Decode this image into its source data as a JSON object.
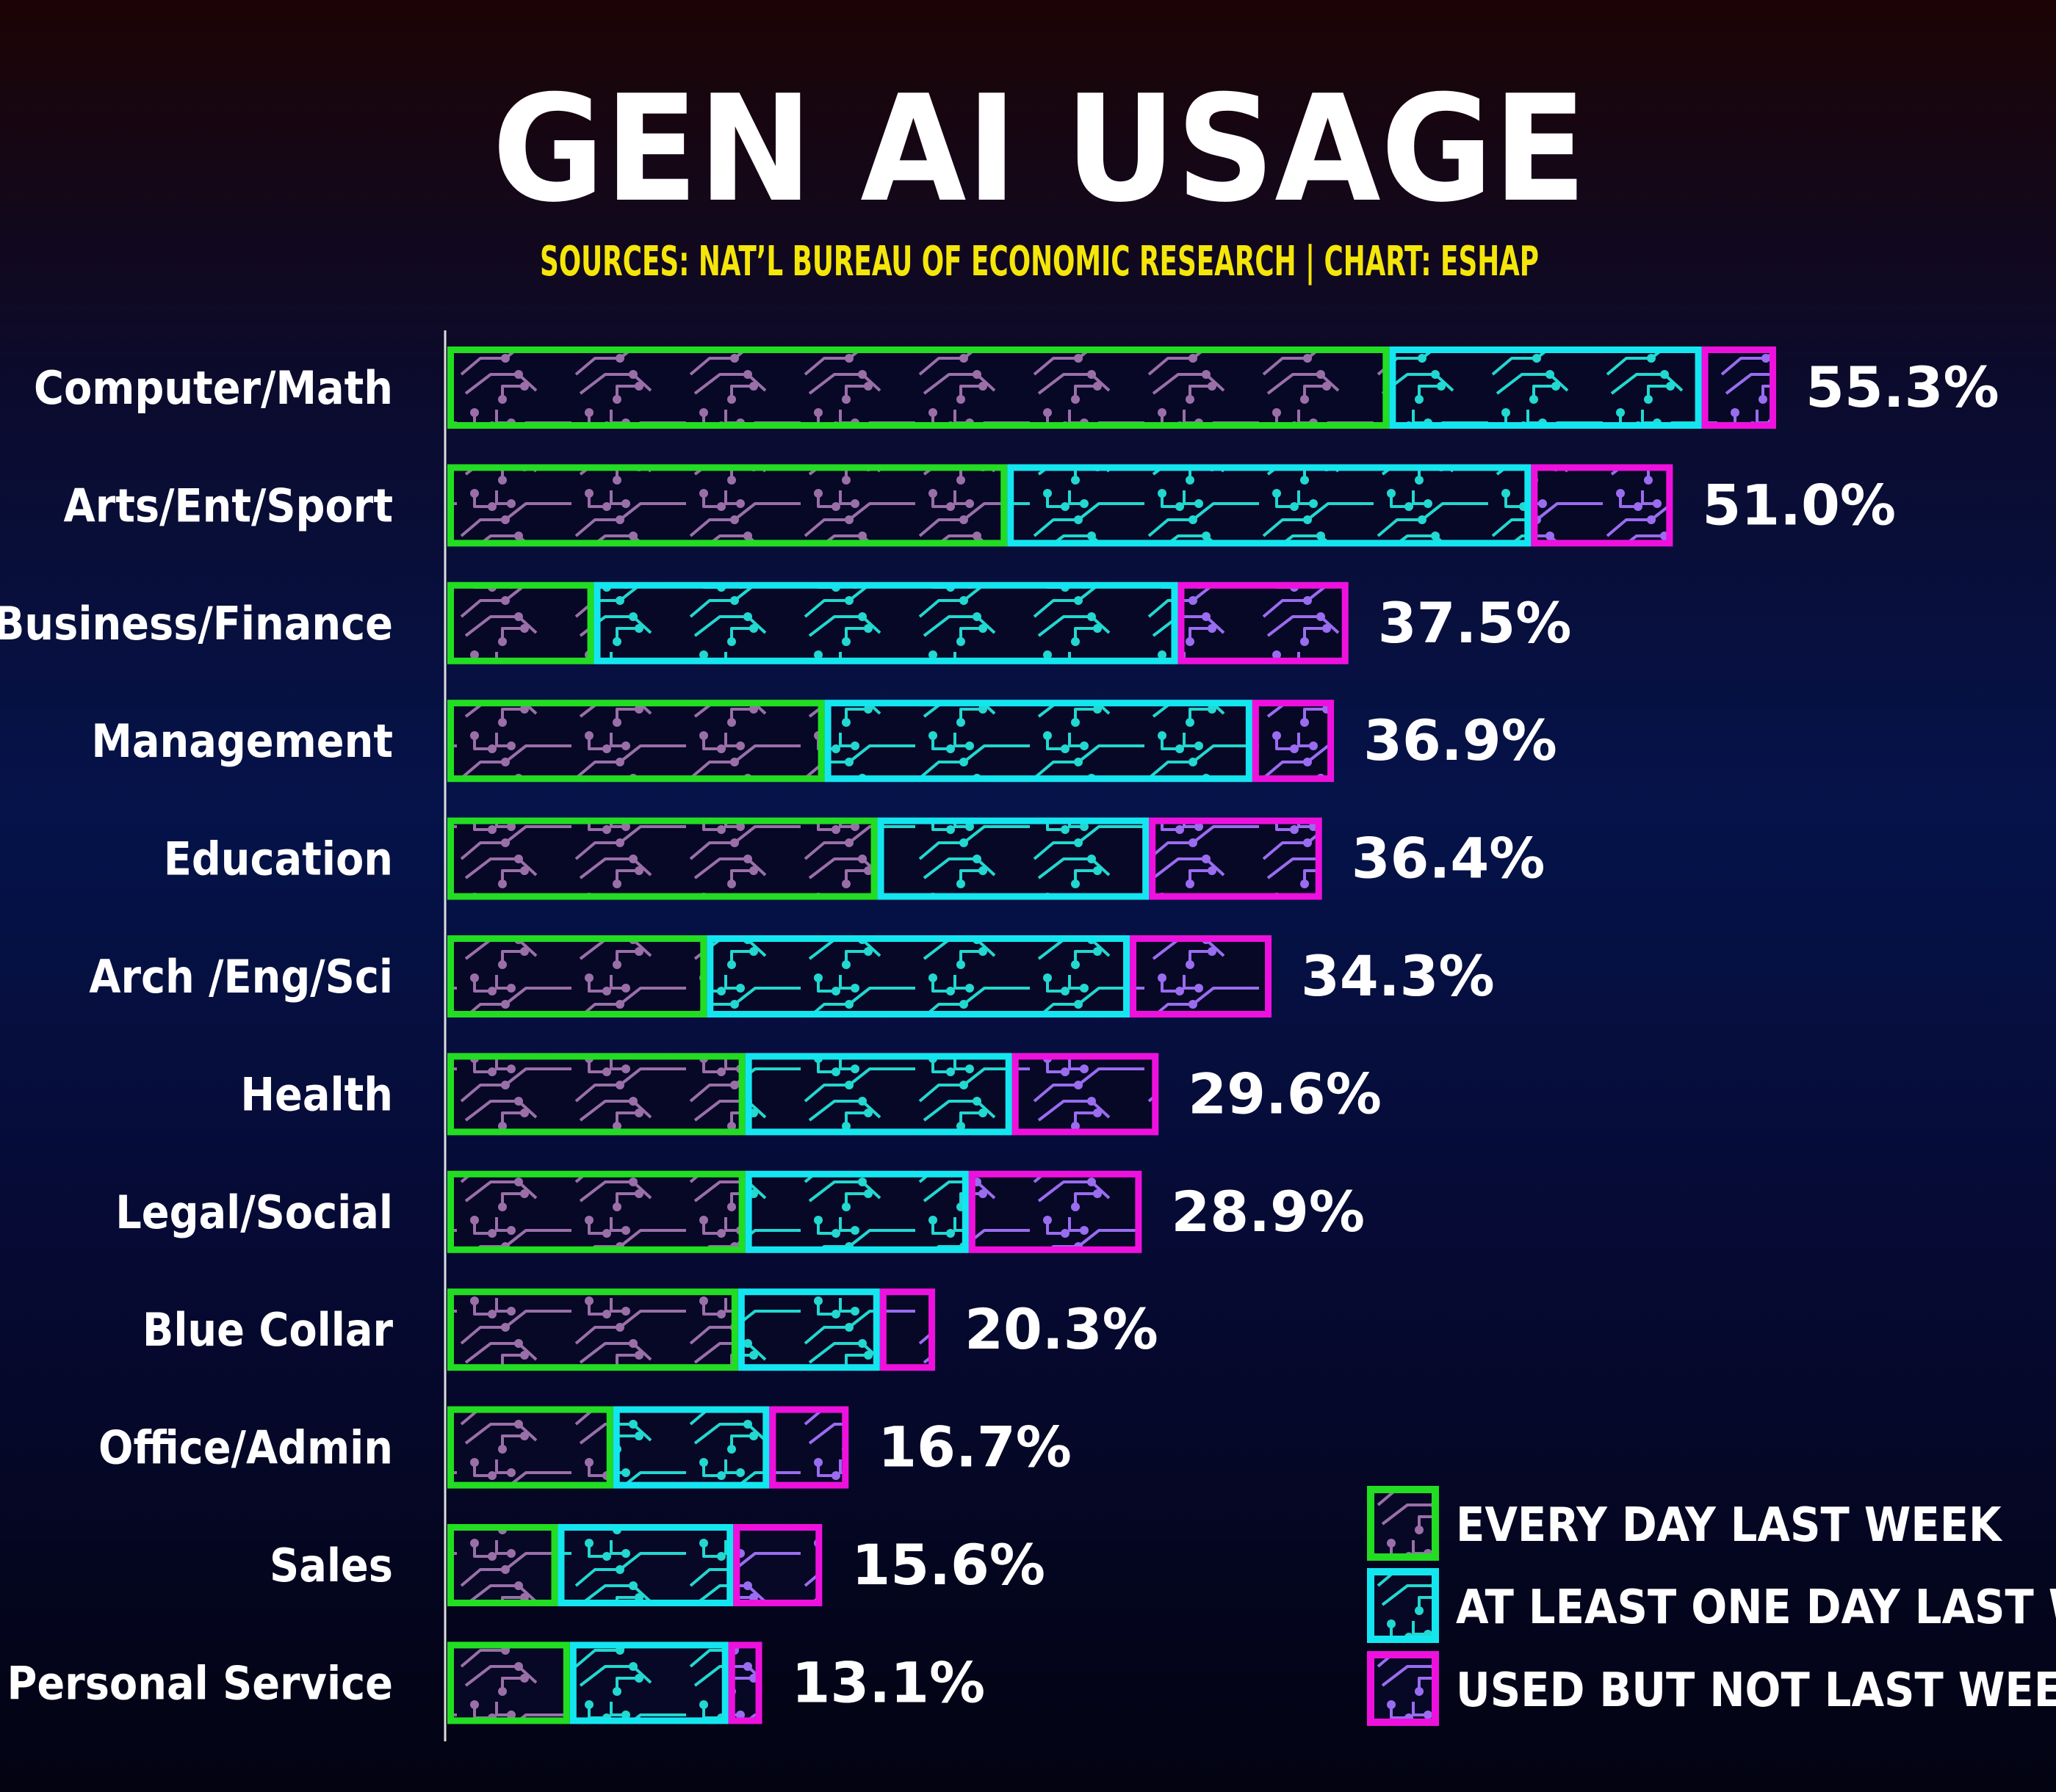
{
  "chart_data": {
    "type": "bar",
    "orientation": "horizontal",
    "stacked": true,
    "title": "GEN AI USAGE",
    "subtitle": "SOURCES: NAT’L BUREAU OF ECONOMIC RESEARCH | CHART: ESHAP",
    "categories": [
      "Computer/Math",
      "Arts/Ent/Sport",
      "Business/Finance",
      "Management",
      "Education",
      "Arch /Eng/Sci",
      "Health",
      "Legal/Social",
      "Blue Collar",
      "Office/Admin",
      "Sales",
      "Personal Service"
    ],
    "series": [
      {
        "name": "EVERY DAY LAST WEEK",
        "color": "#22dd22",
        "values": [
          39.2,
          23.3,
          6.1,
          15.7,
          17.9,
          10.8,
          12.4,
          12.4,
          12.1,
          6.9,
          4.6,
          5.1
        ]
      },
      {
        "name": "AT LEAST ONE DAY LAST WEEK",
        "color": "#14e6f0",
        "values": [
          13.0,
          21.8,
          24.3,
          17.8,
          11.3,
          17.6,
          11.1,
          9.3,
          5.9,
          6.5,
          7.3,
          6.6
        ]
      },
      {
        "name": "USED BUT NOT LAST WEEK",
        "color": "#ee11dd",
        "values": [
          3.1,
          5.9,
          7.1,
          3.4,
          7.2,
          5.9,
          6.1,
          7.2,
          2.3,
          3.3,
          3.7,
          1.4
        ]
      }
    ],
    "totals": [
      "55.3%",
      "51.0%",
      "37.5%",
      "36.9%",
      "36.4%",
      "34.3%",
      "29.6%",
      "28.9%",
      "20.3%",
      "16.7%",
      "15.6%",
      "13.1%"
    ],
    "xlim": [
      0,
      55.3
    ],
    "grid": false,
    "legend_position": "bottom-right",
    "inner_pattern_colors": {
      "green": "#9a6fa8",
      "cyan": "#22d8d0",
      "magenta": "#9a6cf0",
      "background": "#070726"
    }
  }
}
